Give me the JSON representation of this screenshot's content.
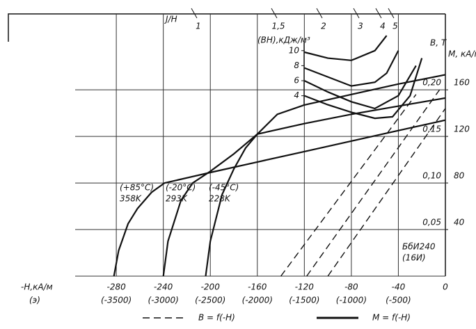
{
  "chart_data": {
    "type": "line",
    "title": "J/H",
    "load_lines": [
      "1",
      "1,5",
      "2",
      "3",
      "4",
      "5"
    ],
    "x_label": "-Н,кА/м",
    "x2_label": "(э)",
    "y_label": "B, T",
    "y2_label": "M, кА/м",
    "y3_label": "(BH),кДж/м³",
    "xlim": [
      -315,
      0
    ],
    "xticks": [
      -280,
      -240,
      -200,
      -160,
      -120,
      -80,
      -40,
      0
    ],
    "x2lim": [
      -3937.5,
      0
    ],
    "x2ticks": [
      {
        "value": -3500,
        "label": "(-3500)"
      },
      {
        "value": -3000,
        "label": "(-3000)"
      },
      {
        "value": -2500,
        "label": "(-2500)"
      },
      {
        "value": -2000,
        "label": "(-2000)"
      },
      {
        "value": -1500,
        "label": "(-1500)"
      },
      {
        "value": -1000,
        "label": "(-1000)"
      },
      {
        "value": -500,
        "label": "(-500)"
      }
    ],
    "ylim": [
      0,
      0.28
    ],
    "yticks": [
      {
        "value": 0.05,
        "label": "0,05"
      },
      {
        "value": 0.1,
        "label": "0,10"
      },
      {
        "value": 0.15,
        "label": "0,15"
      },
      {
        "value": 0.2,
        "label": "0,20"
      }
    ],
    "y2lim": [
      0,
      224
    ],
    "y2ticks": [
      40,
      80,
      120,
      160
    ],
    "y3lim": [
      -20,
      14.7
    ],
    "y3ticks": [
      4,
      6,
      8,
      10
    ],
    "grid": true,
    "color": "#111",
    "legend": [
      {
        "label": "B = f(-H)",
        "dash": true
      },
      {
        "label": "M = f(-H)",
        "dash": false
      }
    ],
    "annotations": [
      [
        "(+85°C)",
        "358K"
      ],
      [
        "(-20°C)",
        "293K"
      ],
      [
        "(-45°C)",
        "228K"
      ],
      [
        "БбИ240",
        "(16И)"
      ]
    ],
    "series": [
      {
        "axis": "y2",
        "dash": false,
        "x": [
          -282,
          -278,
          -270,
          -262,
          -250,
          -239,
          -200,
          -160,
          -120,
          -80,
          -40,
          0
        ],
        "values": [
          0,
          22,
          45,
          58,
          72,
          80,
          89,
          98,
          107,
          116,
          125,
          134
        ]
      },
      {
        "axis": "y2",
        "dash": false,
        "x": [
          -240,
          -236,
          -225,
          -215,
          -200,
          -180,
          -160,
          -120,
          -80,
          -40,
          0
        ],
        "values": [
          0,
          30,
          65,
          80,
          90,
          105,
          122,
          131,
          139,
          146,
          153
        ]
      },
      {
        "axis": "y2",
        "dash": false,
        "x": [
          -204,
          -200,
          -190,
          -180,
          -170,
          -160,
          -143,
          -120,
          -80,
          -40,
          0
        ],
        "values": [
          0,
          30,
          70,
          92,
          110,
          122,
          139,
          147,
          156,
          165,
          173
        ]
      },
      {
        "axis": "y",
        "dash": true,
        "x": [
          -140,
          -25
        ],
        "values": [
          0,
          0.195
        ]
      },
      {
        "axis": "y",
        "dash": true,
        "x": [
          -118,
          -5
        ],
        "values": [
          0,
          0.2
        ]
      },
      {
        "axis": "y",
        "dash": true,
        "x": [
          -100,
          0
        ],
        "values": [
          0,
          0.18
        ]
      },
      {
        "axis": "y3",
        "dash": false,
        "x": [
          -120,
          -100,
          -80,
          -60,
          -50
        ],
        "values": [
          9.8,
          9.0,
          8.7,
          10,
          12
        ]
      },
      {
        "axis": "y3",
        "dash": false,
        "x": [
          -120,
          -100,
          -80,
          -60,
          -50,
          -40
        ],
        "values": [
          7.7,
          6.5,
          5.3,
          5.8,
          7,
          10
        ]
      },
      {
        "axis": "y3",
        "dash": false,
        "x": [
          -120,
          -100,
          -80,
          -60,
          -40,
          -25
        ],
        "values": [
          6.0,
          4.5,
          3.2,
          2.3,
          4,
          8
        ]
      },
      {
        "axis": "y3",
        "dash": false,
        "x": [
          -120,
          -100,
          -80,
          -60,
          -45,
          -30,
          -20
        ],
        "values": [
          4.0,
          2.8,
          1.8,
          1.0,
          1.2,
          4,
          9
        ]
      }
    ]
  }
}
